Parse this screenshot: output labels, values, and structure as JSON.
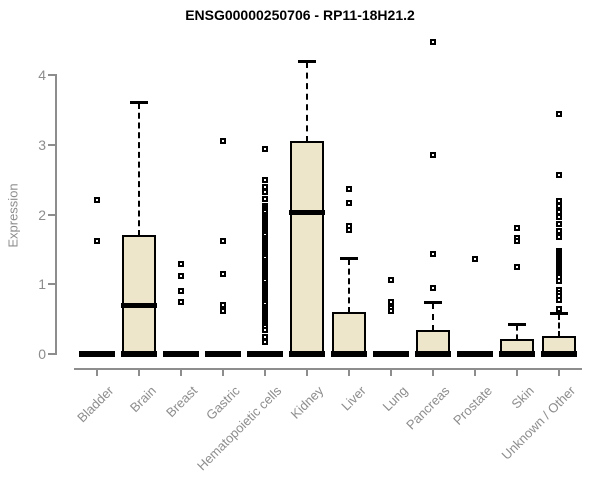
{
  "title": "ENSG00000250706 - RP11-18H21.2",
  "y_axis": {
    "label": "Expression",
    "ticks": [
      "0",
      "1",
      "2",
      "3",
      "4"
    ]
  },
  "chart_data": {
    "type": "boxplot",
    "title": "ENSG00000250706 - RP11-18H21.2",
    "xlabel": "",
    "ylabel": "Expression",
    "ylim": [
      0,
      4.6
    ],
    "yticks": [
      0,
      1,
      2,
      3,
      4
    ],
    "grid": false,
    "box_fill_color": "#EDE6CB",
    "box_line_color": "#000000",
    "axis_color": "#8d8d8d",
    "categories": [
      "Bladder",
      "Brain",
      "Breast",
      "Gastric",
      "Hematopoietic cells",
      "Kidney",
      "Liver",
      "Lung",
      "Pancreas",
      "Prostate",
      "Skin",
      "Unknown / Other"
    ],
    "series": [
      {
        "name": "Bladder",
        "q1": 0,
        "median": 0,
        "q3": 0,
        "whisker_low": 0,
        "whisker_high": 0,
        "outliers": [
          2.21,
          1.62
        ]
      },
      {
        "name": "Brain",
        "q1": 0,
        "median": 0.7,
        "q3": 1.69,
        "whisker_low": 0,
        "whisker_high": 3.6,
        "outliers": []
      },
      {
        "name": "Breast",
        "q1": 0,
        "median": 0,
        "q3": 0,
        "whisker_low": 0,
        "whisker_high": 0,
        "outliers": [
          1.29,
          1.12,
          0.91,
          0.75
        ]
      },
      {
        "name": "Gastric",
        "q1": 0,
        "median": 0,
        "q3": 0,
        "whisker_low": 0,
        "whisker_high": 0,
        "outliers": [
          3.06,
          1.62,
          1.15,
          0.7,
          0.62
        ]
      },
      {
        "name": "Hematopoietic cells",
        "q1": 0,
        "median": 0,
        "q3": 0,
        "whisker_low": 0,
        "whisker_high": 0,
        "outliers": [
          2.94,
          2.5,
          2.4,
          2.32,
          2.22,
          2.12,
          2.09,
          2.06,
          2.03,
          2.0,
          1.97,
          1.94,
          1.91,
          1.88,
          1.85,
          1.82,
          1.79,
          1.76,
          1.73,
          1.7,
          1.67,
          1.64,
          1.61,
          1.58,
          1.55,
          1.52,
          1.49,
          1.46,
          1.43,
          1.4,
          1.37,
          1.34,
          1.31,
          1.28,
          1.25,
          1.22,
          1.19,
          1.16,
          1.13,
          1.1,
          1.07,
          1.04,
          1.01,
          0.98,
          0.95,
          0.92,
          0.89,
          0.86,
          0.83,
          0.8,
          0.77,
          0.74,
          0.71,
          0.68,
          0.65,
          0.62,
          0.59,
          0.56,
          0.53,
          0.5,
          0.47,
          0.44,
          0.41,
          0.38,
          0.35,
          0.25,
          0.17
        ]
      },
      {
        "name": "Kidney",
        "q1": 0,
        "median": 2.04,
        "q3": 3.04,
        "whisker_low": 0,
        "whisker_high": 4.19,
        "outliers": []
      },
      {
        "name": "Liver",
        "q1": 0,
        "median": 0,
        "q3": 0.59,
        "whisker_low": 0,
        "whisker_high": 1.36,
        "outliers": [
          2.36,
          2.17,
          1.84,
          1.78
        ]
      },
      {
        "name": "Lung",
        "q1": 0,
        "median": 0,
        "q3": 0,
        "whisker_low": 0,
        "whisker_high": 0,
        "outliers": [
          1.06,
          0.75,
          0.66,
          0.61
        ]
      },
      {
        "name": "Pancreas",
        "q1": 0,
        "median": 0,
        "q3": 0.33,
        "whisker_low": 0,
        "whisker_high": 0.73,
        "outliers": [
          4.47,
          2.85,
          1.43,
          0.95
        ]
      },
      {
        "name": "Prostate",
        "q1": 0,
        "median": 0,
        "q3": 0,
        "whisker_low": 0,
        "whisker_high": 0,
        "outliers": [
          1.36
        ]
      },
      {
        "name": "Skin",
        "q1": 0,
        "median": 0,
        "q3": 0.2,
        "whisker_low": 0,
        "whisker_high": 0.42,
        "outliers": [
          1.81,
          1.66,
          1.62,
          1.25
        ]
      },
      {
        "name": "Unknown / Other",
        "q1": 0,
        "median": 0,
        "q3": 0.25,
        "whisker_low": 0,
        "whisker_high": 0.58,
        "outliers": [
          3.44,
          2.56,
          2.19,
          2.12,
          2.04,
          1.96,
          1.86,
          1.76,
          1.68,
          1.47,
          1.45,
          1.43,
          1.41,
          1.39,
          1.37,
          1.35,
          1.33,
          1.31,
          1.29,
          1.27,
          1.25,
          1.23,
          1.21,
          1.19,
          1.17,
          1.15,
          1.13,
          1.11,
          1.04,
          0.92,
          0.88,
          0.83,
          0.78,
          0.65
        ]
      }
    ]
  }
}
